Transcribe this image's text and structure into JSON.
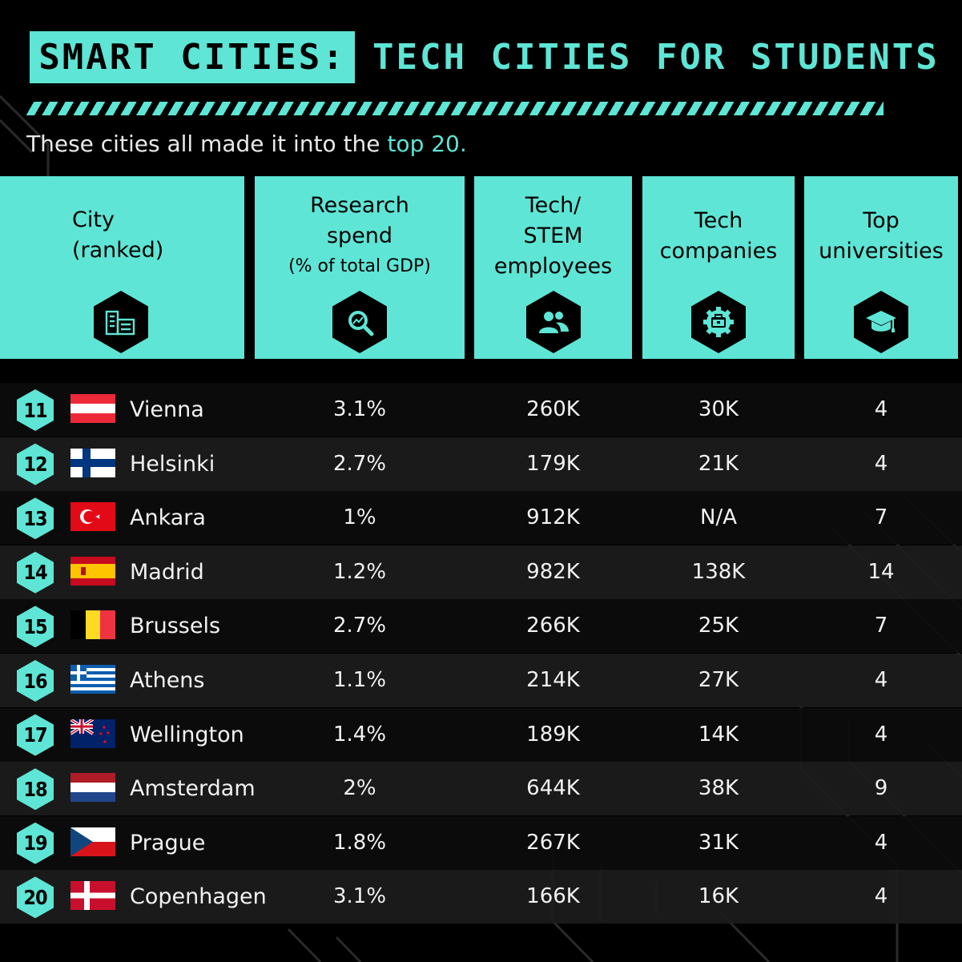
{
  "title": {
    "boxed": "SMART CITIES:",
    "rest": "TECH CITIES FOR STUDENTS"
  },
  "subtitle": {
    "text": "These cities all made it into the",
    "accent": "top 20."
  },
  "headers": {
    "city": [
      "City",
      "(ranked)"
    ],
    "research": [
      "Research",
      "spend",
      "(% of total GDP)"
    ],
    "employees": [
      "Tech/",
      "STEM",
      "employees"
    ],
    "companies": [
      "Tech",
      "companies"
    ],
    "universities": [
      "Top",
      "universities"
    ]
  },
  "icons": {
    "city": "buildings-icon",
    "research": "magnifier-chart-icon",
    "employees": "people-icon",
    "companies": "gear-briefcase-icon",
    "universities": "graduation-cap-icon"
  },
  "colors": {
    "accent": "#5ee5d5",
    "background": "#000000",
    "row_dark": "#0c0c0c",
    "row_light": "#1c1c1c"
  },
  "chart_data": {
    "type": "table",
    "columns": [
      "City (ranked)",
      "Research spend (% of total GDP)",
      "Tech/STEM employees",
      "Tech companies",
      "Top universities"
    ],
    "rows": [
      {
        "rank": "11",
        "flag": "austria-flag",
        "city": "Vienna",
        "research": "3.1%",
        "employees": "260K",
        "companies": "30K",
        "universities": "4"
      },
      {
        "rank": "12",
        "flag": "finland-flag",
        "city": "Helsinki",
        "research": "2.7%",
        "employees": "179K",
        "companies": "21K",
        "universities": "4"
      },
      {
        "rank": "13",
        "flag": "turkey-flag",
        "city": "Ankara",
        "research": "1%",
        "employees": "912K",
        "companies": "N/A",
        "universities": "7"
      },
      {
        "rank": "14",
        "flag": "spain-flag",
        "city": "Madrid",
        "research": "1.2%",
        "employees": "982K",
        "companies": "138K",
        "universities": "14"
      },
      {
        "rank": "15",
        "flag": "belgium-flag",
        "city": "Brussels",
        "research": "2.7%",
        "employees": "266K",
        "companies": "25K",
        "universities": "7"
      },
      {
        "rank": "16",
        "flag": "greece-flag",
        "city": "Athens",
        "research": "1.1%",
        "employees": "214K",
        "companies": "27K",
        "universities": "4"
      },
      {
        "rank": "17",
        "flag": "new-zealand-flag",
        "city": "Wellington",
        "research": "1.4%",
        "employees": "189K",
        "companies": "14K",
        "universities": "4"
      },
      {
        "rank": "18",
        "flag": "netherlands-flag",
        "city": "Amsterdam",
        "research": "2%",
        "employees": "644K",
        "companies": "38K",
        "universities": "9"
      },
      {
        "rank": "19",
        "flag": "czech-flag",
        "city": "Prague",
        "research": "1.8%",
        "employees": "267K",
        "companies": "31K",
        "universities": "4"
      },
      {
        "rank": "20",
        "flag": "denmark-flag",
        "city": "Copenhagen",
        "research": "3.1%",
        "employees": "166K",
        "companies": "16K",
        "universities": "4"
      }
    ]
  }
}
